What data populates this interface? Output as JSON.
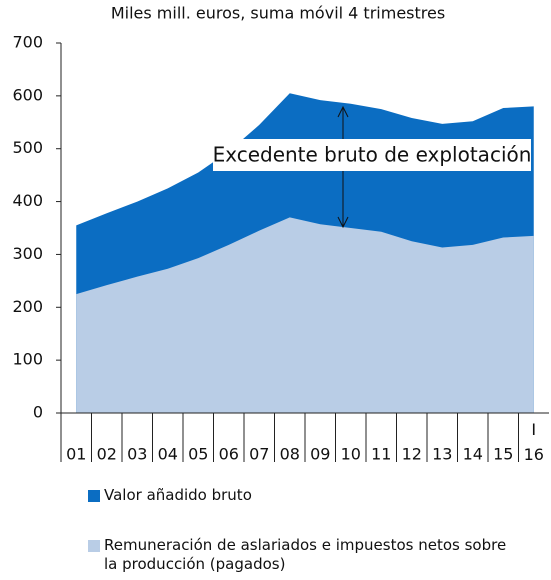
{
  "chart_data": {
    "type": "area",
    "title": "Miles mill. euros, suma móvil 4 trimestres",
    "categories": [
      "01",
      "02",
      "03",
      "04",
      "05",
      "06",
      "07",
      "08",
      "09",
      "10",
      "11",
      "12",
      "13",
      "14",
      "15",
      "I 16"
    ],
    "series": [
      {
        "name": "Valor añadido bruto",
        "color": "#0b6dc2",
        "values": [
          355,
          378,
          400,
          425,
          455,
          495,
          545,
          605,
          592,
          585,
          575,
          558,
          547,
          552,
          577,
          580
        ]
      },
      {
        "name": "Remuneración de aslariados e impuestos netos sobre la producción (pagados)",
        "color": "#b9cde6",
        "values": [
          225,
          242,
          258,
          273,
          293,
          318,
          345,
          370,
          357,
          350,
          343,
          325,
          313,
          318,
          332,
          335
        ]
      }
    ],
    "ylim": [
      0,
      700
    ],
    "yticks": [
      0,
      100,
      200,
      300,
      400,
      500,
      600,
      700
    ],
    "grid": false,
    "annotation": "Excedente bruto de explotación"
  }
}
